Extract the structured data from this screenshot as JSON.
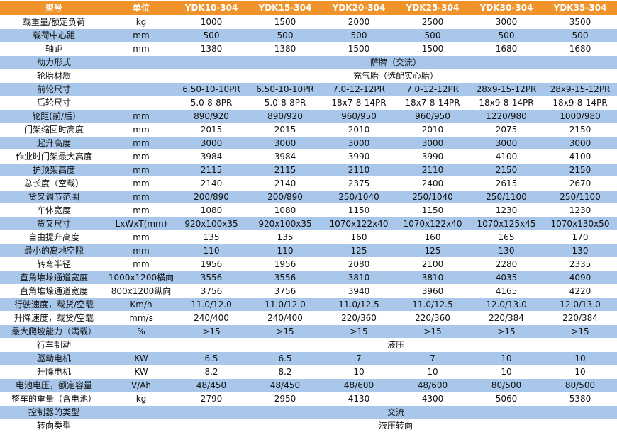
{
  "headers": [
    "型号",
    "单位",
    "YDK10-304",
    "YDK15-304",
    "YDK20-304",
    "YDK25-304",
    "YDK30-304",
    "YDK35-304"
  ],
  "rows": [
    {
      "label": "载重量/额定负荷",
      "unit": "kg",
      "values": [
        "1000",
        "1500",
        "2000",
        "2500",
        "3000",
        "3500"
      ]
    },
    {
      "label": "载荷中心距",
      "unit": "mm",
      "values": [
        "500",
        "500",
        "500",
        "500",
        "500",
        "500"
      ]
    },
    {
      "label": "轴距",
      "unit": "mm",
      "values": [
        "1380",
        "1380",
        "1500",
        "1500",
        "1680",
        "1680"
      ]
    },
    {
      "label": "动力形式",
      "unit": "",
      "merged": "萨牌（交流）"
    },
    {
      "label": "轮胎材质",
      "unit": "",
      "merged": "充气胎（选配实心胎）"
    },
    {
      "label": "前轮尺寸",
      "unit": "",
      "values": [
        "6.50-10-10PR",
        "6.50-10-10PR",
        "7.0-12-12PR",
        "7.0-12-12PR",
        "28x9-15-12PR",
        "28x9-15-12PR"
      ]
    },
    {
      "label": "后轮尺寸",
      "unit": "",
      "values": [
        "5.0-8-8PR",
        "5.0-8-8PR",
        "18x7-8-14PR",
        "18x7-8-14PR",
        "18x9-8-14PR",
        "18x9-8-14PR"
      ]
    },
    {
      "label": "轮距(前/后)",
      "unit": "mm",
      "values": [
        "890/920",
        "890/920",
        "960/950",
        "960/950",
        "1220/980",
        "1000/980"
      ]
    },
    {
      "label": "门架缩回时高度",
      "unit": "mm",
      "values": [
        "2015",
        "2015",
        "2010",
        "2010",
        "2075",
        "2150"
      ]
    },
    {
      "label": "起升高度",
      "unit": "mm",
      "values": [
        "3000",
        "3000",
        "3000",
        "3000",
        "3000",
        "3000"
      ]
    },
    {
      "label": "作业时门架最大高度",
      "unit": "mm",
      "values": [
        "3984",
        "3984",
        "3990",
        "3990",
        "4100",
        "4100"
      ]
    },
    {
      "label": "护顶架高度",
      "unit": "mm",
      "values": [
        "2115",
        "2115",
        "2110",
        "2110",
        "2150",
        "2150"
      ]
    },
    {
      "label": "总长度（空载）",
      "unit": "mm",
      "values": [
        "2140",
        "2140",
        "2375",
        "2400",
        "2615",
        "2670"
      ]
    },
    {
      "label": "货叉调节范围",
      "unit": "mm",
      "values": [
        "200/890",
        "200/890",
        "250/1040",
        "250/1040",
        "250/1100",
        "250/1100"
      ]
    },
    {
      "label": "车体宽度",
      "unit": "mm",
      "values": [
        "1080",
        "1080",
        "1150",
        "1150",
        "1230",
        "1230"
      ]
    },
    {
      "label": "货叉尺寸",
      "unit": "LxWxT(mm)",
      "values": [
        "920x100x35",
        "920x100x35",
        "1070x122x40",
        "1070x122x40",
        "1070x125x45",
        "1070x130x50"
      ]
    },
    {
      "label": "自由提升高度",
      "unit": "mm",
      "values": [
        "135",
        "135",
        "160",
        "160",
        "165",
        "170"
      ]
    },
    {
      "label": "最小的离地空隙",
      "unit": "mm",
      "values": [
        "110",
        "110",
        "125",
        "125",
        "130",
        "130"
      ]
    },
    {
      "label": "转弯半径",
      "unit": "mm",
      "values": [
        "1956",
        "1956",
        "2080",
        "2100",
        "2280",
        "2335"
      ]
    },
    {
      "label": "直角堆垛通道宽度",
      "unit": "1000x1200横向",
      "values": [
        "3556",
        "3556",
        "3810",
        "3810",
        "4035",
        "4090"
      ]
    },
    {
      "label": "直角堆垛通道宽度",
      "unit": "800x1200纵向",
      "values": [
        "3756",
        "3756",
        "3940",
        "3960",
        "4165",
        "4220"
      ]
    },
    {
      "label": "行驶速度，载货/空载",
      "unit": "Km/h",
      "values": [
        "11.0/12.0",
        "11.0/12.0",
        "11.0/12.5",
        "11.0/12.5",
        "12.0/13.0",
        "12.0/13.0"
      ]
    },
    {
      "label": "升降速度，载货/空载",
      "unit": "mm/s",
      "values": [
        "240/400",
        "240/400",
        "220/360",
        "220/360",
        "220/384",
        "220/384"
      ]
    },
    {
      "label": "最大爬坡能力（满载）",
      "unit": "%",
      "values": [
        ">15",
        ">15",
        ">15",
        ">15",
        ">15",
        ">15"
      ]
    },
    {
      "label": "行车制动",
      "unit": "",
      "merged": "液压"
    },
    {
      "label": "驱动电机",
      "unit": "KW",
      "values": [
        "6.5",
        "6.5",
        "7",
        "7",
        "10",
        "10"
      ]
    },
    {
      "label": "升降电机",
      "unit": "KW",
      "values": [
        "8.2",
        "8.2",
        "10",
        "10",
        "10",
        "10"
      ]
    },
    {
      "label": "电池电压，额定容量",
      "unit": "V/Ah",
      "values": [
        "48/450",
        "48/450",
        "48/600",
        "48/600",
        "80/500",
        "80/500"
      ]
    },
    {
      "label": "整车的重量（含电池）",
      "unit": "kg",
      "values": [
        "2790",
        "2950",
        "4130",
        "4300",
        "5060",
        "5380"
      ]
    },
    {
      "label": "控制器的类型",
      "unit": "",
      "merged": "交流"
    },
    {
      "label": "转向类型",
      "unit": "",
      "merged": "液压转向"
    }
  ],
  "colors": {
    "header_bg": "#f0932b",
    "alt_row_bg": "#a9c7ea",
    "plain_row_bg": "#ffffff"
  }
}
